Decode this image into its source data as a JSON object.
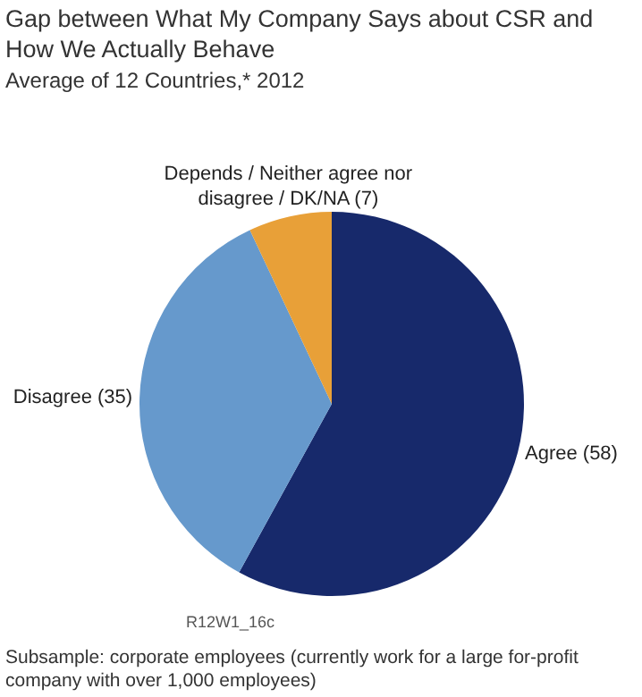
{
  "chart_data": {
    "type": "pie",
    "title": "Gap between What My Company Says about CSR and How We Actually Behave",
    "subtitle": "Average of 12 Countries,* 2012",
    "categories": [
      "Agree (58)",
      "Disagree (35)",
      "Depends / Neither agree nor disagree / DK/NA (7)"
    ],
    "values": [
      58,
      35,
      7
    ],
    "colors": [
      "#17296b",
      "#6699cc",
      "#e8a038"
    ],
    "legend": false,
    "annotations": [
      "R12W1_16c",
      "Subsample: corporate employees (currently work for a large for-profit company with over 1,000 employees)"
    ]
  }
}
